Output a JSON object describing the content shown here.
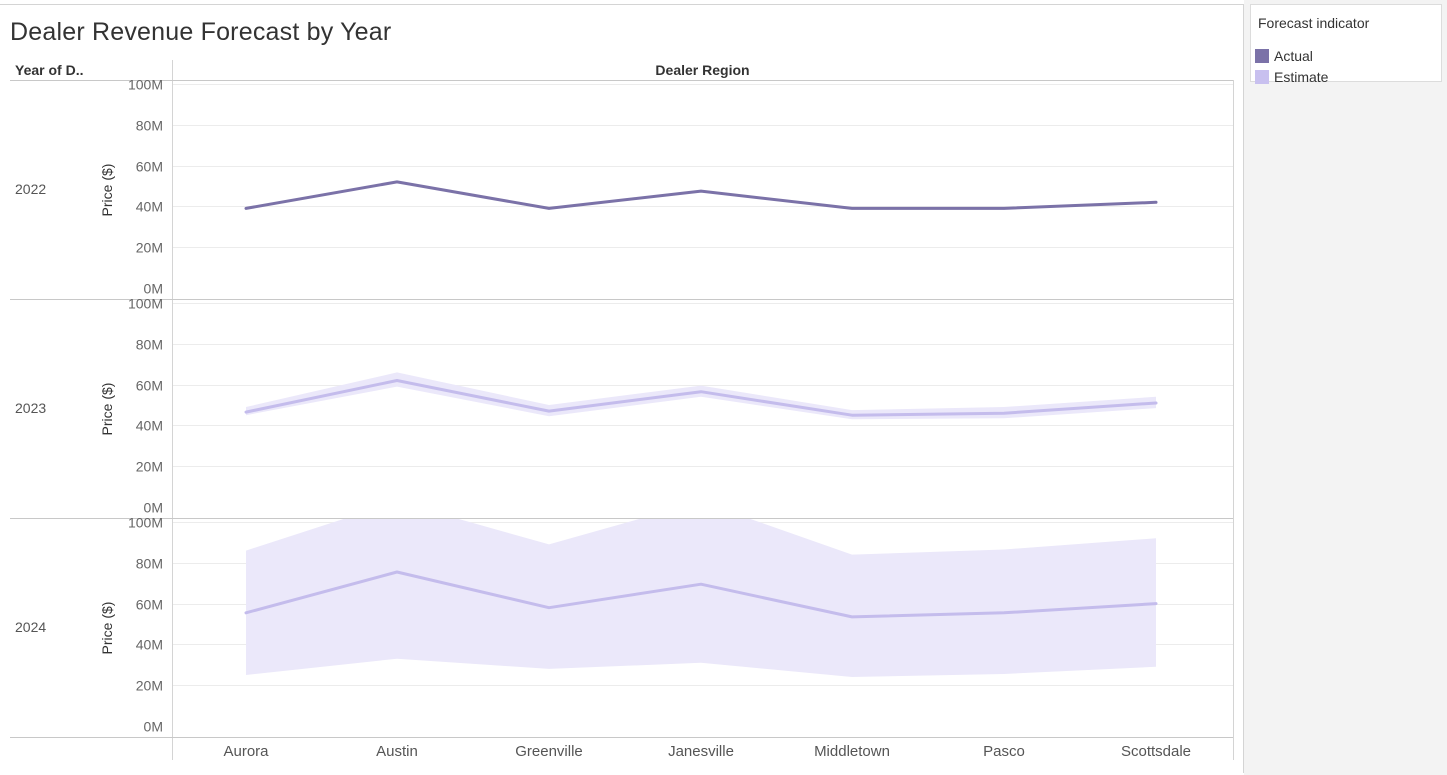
{
  "chart_data": {
    "type": "line",
    "title": "Dealer Revenue Forecast by Year",
    "row_header": "Year of D..",
    "column_header": "Dealer Region",
    "ylabel": "Price ($)",
    "categories": [
      "Aurora",
      "Austin",
      "Greenville",
      "Janesville",
      "Middletown",
      "Pasco",
      "Scottsdale"
    ],
    "y_ticks": [
      0,
      20,
      40,
      60,
      80,
      100
    ],
    "y_tick_labels": [
      "0M",
      "20M",
      "40M",
      "60M",
      "80M",
      "100M"
    ],
    "ylim": [
      0,
      105
    ],
    "legend": {
      "title": "Forecast indicator",
      "position": "top-right",
      "items": [
        {
          "label": "Actual",
          "color": "#7b72a8"
        },
        {
          "label": "Estimate",
          "color": "#c8c0ef"
        }
      ]
    },
    "colors": {
      "actual_line": "#7b72a8",
      "estimate_line": "#c4bcec",
      "estimate_band": "#ebe8fa"
    },
    "grid": true,
    "panels": [
      {
        "year": "2022",
        "indicator": "Actual",
        "values": [
          39,
          52,
          39,
          47.5,
          39,
          39,
          42
        ]
      },
      {
        "year": "2023",
        "indicator": "Estimate",
        "values": [
          46.5,
          62,
          47,
          56.5,
          45,
          46,
          51
        ],
        "lower": [
          45,
          59,
          44.5,
          54,
          43,
          43.5,
          48.5
        ],
        "upper": [
          49,
          66,
          50,
          59.5,
          47.5,
          49,
          54
        ]
      },
      {
        "year": "2024",
        "indicator": "Estimate",
        "values": [
          55.5,
          75.5,
          58,
          69.5,
          53.5,
          55.5,
          60
        ],
        "lower": [
          25,
          33,
          28,
          31,
          24,
          25.5,
          29
        ],
        "upper": [
          86,
          110,
          89,
          110,
          84,
          86.5,
          92
        ]
      }
    ]
  }
}
